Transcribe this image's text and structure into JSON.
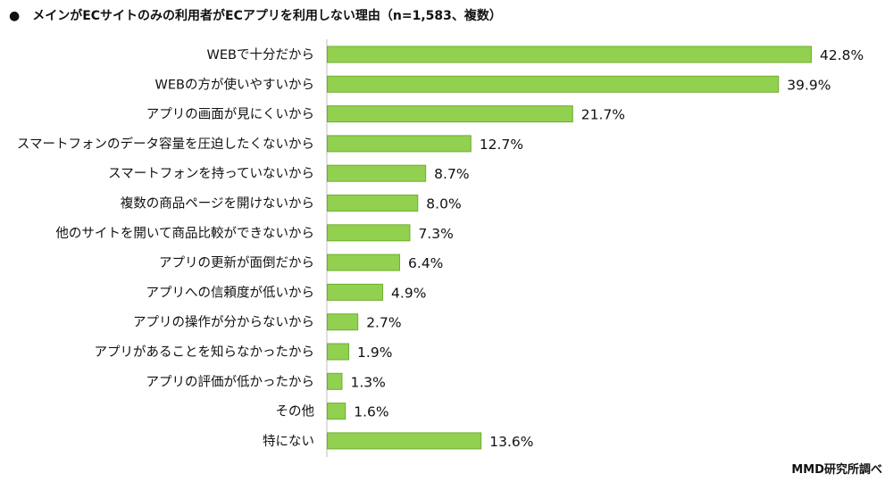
{
  "chart_data": {
    "type": "bar",
    "orientation": "horizontal",
    "title": "●　メインがECサイトのみの利用者がECアプリを利用しない理由（n=1,583、複数）",
    "source": "MMD研究所調べ",
    "unit": "%",
    "categories": [
      "WEBで十分だから",
      "WEBの方が使いやすいから",
      "アプリの画面が見にくいから",
      "スマートフォンのデータ容量を圧迫したくないから",
      "スマートフォンを持っていないから",
      "複数の商品ページを開けないから",
      "他のサイトを開いて商品比較ができないから",
      "アプリの更新が面倒だから",
      "アプリへの信頼度が低いから",
      "アプリの操作が分からないから",
      "アプリがあることを知らなかったから",
      "アプリの評価が低かったから",
      "その他",
      "特にない"
    ],
    "values": [
      42.8,
      39.9,
      21.7,
      12.7,
      8.7,
      8.0,
      7.3,
      6.4,
      4.9,
      2.7,
      1.9,
      1.3,
      1.6,
      13.6
    ],
    "value_labels": [
      "42.8%",
      "39.9%",
      "21.7%",
      "12.7%",
      "8.7%",
      "8.0%",
      "7.3%",
      "6.4%",
      "4.9%",
      "2.7%",
      "1.9%",
      "1.3%",
      "1.6%",
      "13.6%"
    ],
    "xlim": [
      0,
      50
    ],
    "grid": false,
    "colors": {
      "bar": "#92D050",
      "bar_edge": "#6FAE2E",
      "axis": "#BFBFBF"
    }
  }
}
